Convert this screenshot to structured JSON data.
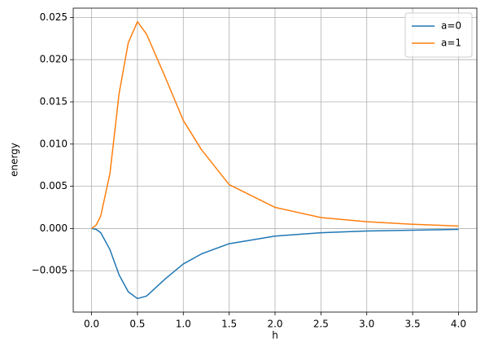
{
  "chart_data": {
    "type": "line",
    "xlabel": "h",
    "ylabel": "energy",
    "x": [
      0,
      0.05,
      0.1,
      0.2,
      0.3,
      0.4,
      0.5,
      0.6,
      0.7,
      0.8,
      1.0,
      1.2,
      1.5,
      2.0,
      2.5,
      3.0,
      3.5,
      4.0
    ],
    "series": [
      {
        "name": "a=0",
        "color": "#1f77b4",
        "values": [
          0,
          -0.0001,
          -0.0005,
          -0.0025,
          -0.0055,
          -0.0075,
          -0.0083,
          -0.008,
          -0.007,
          -0.006,
          -0.0042,
          -0.003,
          -0.0018,
          -0.0009,
          -0.0005,
          -0.0003,
          -0.0002,
          -0.0001
        ]
      },
      {
        "name": "a=1",
        "color": "#ff7f0e",
        "values": [
          0,
          0.0004,
          0.0015,
          0.0065,
          0.016,
          0.022,
          0.0245,
          0.023,
          0.0205,
          0.018,
          0.0128,
          0.0093,
          0.0052,
          0.0025,
          0.0013,
          0.0008,
          0.0005,
          0.0003
        ]
      }
    ],
    "xlim": [
      -0.2,
      4.2
    ],
    "xticks": [
      {
        "value": 0,
        "label": "0.0"
      },
      {
        "value": 0.5,
        "label": "0.5"
      },
      {
        "value": 1,
        "label": "1.0"
      },
      {
        "value": 1.5,
        "label": "1.5"
      },
      {
        "value": 2,
        "label": "2.0"
      },
      {
        "value": 2.5,
        "label": "2.5"
      },
      {
        "value": 3,
        "label": "3.0"
      },
      {
        "value": 3.5,
        "label": "3.5"
      },
      {
        "value": 4,
        "label": "4.0"
      }
    ],
    "ylim": [
      -0.0099,
      0.0261
    ],
    "yticks": [
      {
        "value": -0.005,
        "label": "−0.005"
      },
      {
        "value": 0,
        "label": "0.000"
      },
      {
        "value": 0.005,
        "label": "0.005"
      },
      {
        "value": 0.01,
        "label": "0.010"
      },
      {
        "value": 0.015,
        "label": "0.015"
      },
      {
        "value": 0.02,
        "label": "0.020"
      },
      {
        "value": 0.025,
        "label": "0.025"
      }
    ],
    "grid": true,
    "legend": "upper right"
  }
}
